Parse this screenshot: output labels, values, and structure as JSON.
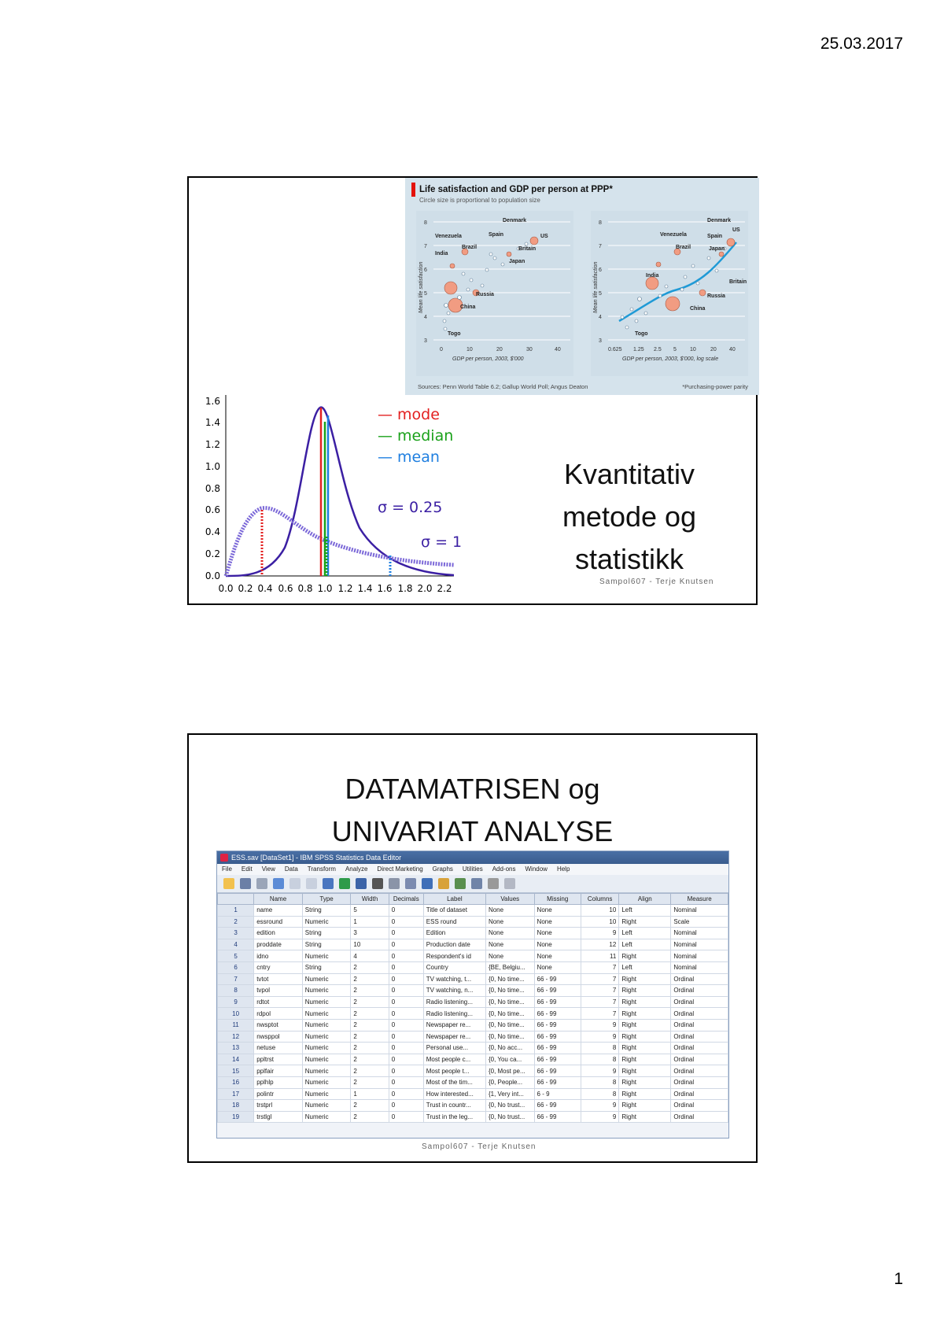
{
  "header": {
    "date": "25.03.2017"
  },
  "footer": {
    "page_number": "1"
  },
  "slide1": {
    "title_lines": [
      "Kvantitativ",
      "metode og",
      "statistikk"
    ],
    "footer": "Sampol607 - Terje Knutsen",
    "economist": {
      "title": "Life satisfaction and GDP per person at PPP*",
      "subtitle": "Circle size is proportional to population size",
      "source": "Sources: Penn World Table 6.2; Gallup World Poll; Angus Deaton",
      "note": "*Purchasing-power parity",
      "colors": {
        "bg": "#d5e3ec",
        "bubble": "#f19c82",
        "line": "#1f9ad6",
        "accent": "#e3120b"
      }
    },
    "distribution": {
      "legend": [
        {
          "label": "— mode",
          "color": "#e32020"
        },
        {
          "label": "— median",
          "color": "#1aa11a"
        },
        {
          "label": "— mean",
          "color": "#1f7fe0"
        }
      ],
      "sigma_labels": [
        "σ = 0.25",
        "σ = 1"
      ]
    }
  },
  "slide2": {
    "title_lines": [
      "DATAMATRISEN og",
      "UNIVARIAT ANALYSE"
    ],
    "footer": "Sampol607 - Terje Knutsen",
    "spss": {
      "window_title": "ESS.sav [DataSet1] - IBM SPSS Statistics Data Editor",
      "menu": [
        "File",
        "Edit",
        "View",
        "Data",
        "Transform",
        "Analyze",
        "Direct Marketing",
        "Graphs",
        "Utilities",
        "Add-ons",
        "Window",
        "Help"
      ],
      "columns": [
        "",
        "Name",
        "Type",
        "Width",
        "Decimals",
        "Label",
        "Values",
        "Missing",
        "Columns",
        "Align",
        "Measure"
      ],
      "rows": [
        [
          "1",
          "name",
          "String",
          "5",
          "0",
          "Title of dataset",
          "None",
          "None",
          "10",
          "Left",
          "Nominal"
        ],
        [
          "2",
          "essround",
          "Numeric",
          "1",
          "0",
          "ESS round",
          "None",
          "None",
          "10",
          "Right",
          "Scale"
        ],
        [
          "3",
          "edition",
          "String",
          "3",
          "0",
          "Edition",
          "None",
          "None",
          "9",
          "Left",
          "Nominal"
        ],
        [
          "4",
          "proddate",
          "String",
          "10",
          "0",
          "Production date",
          "None",
          "None",
          "12",
          "Left",
          "Nominal"
        ],
        [
          "5",
          "idno",
          "Numeric",
          "4",
          "0",
          "Respondent's id",
          "None",
          "None",
          "11",
          "Right",
          "Nominal"
        ],
        [
          "6",
          "cntry",
          "String",
          "2",
          "0",
          "Country",
          "{BE, Belgiu...",
          "None",
          "7",
          "Left",
          "Nominal"
        ],
        [
          "7",
          "tvtot",
          "Numeric",
          "2",
          "0",
          "TV watching, t...",
          "{0, No time...",
          "66 - 99",
          "7",
          "Right",
          "Ordinal"
        ],
        [
          "8",
          "tvpol",
          "Numeric",
          "2",
          "0",
          "TV watching, n...",
          "{0, No time...",
          "66 - 99",
          "7",
          "Right",
          "Ordinal"
        ],
        [
          "9",
          "rdtot",
          "Numeric",
          "2",
          "0",
          "Radio listening...",
          "{0, No time...",
          "66 - 99",
          "7",
          "Right",
          "Ordinal"
        ],
        [
          "10",
          "rdpol",
          "Numeric",
          "2",
          "0",
          "Radio listening...",
          "{0, No time...",
          "66 - 99",
          "7",
          "Right",
          "Ordinal"
        ],
        [
          "11",
          "nwsptot",
          "Numeric",
          "2",
          "0",
          "Newspaper re...",
          "{0, No time...",
          "66 - 99",
          "9",
          "Right",
          "Ordinal"
        ],
        [
          "12",
          "nwsppol",
          "Numeric",
          "2",
          "0",
          "Newspaper re...",
          "{0, No time...",
          "66 - 99",
          "9",
          "Right",
          "Ordinal"
        ],
        [
          "13",
          "netuse",
          "Numeric",
          "2",
          "0",
          "Personal use...",
          "{0, No acc...",
          "66 - 99",
          "8",
          "Right",
          "Ordinal"
        ],
        [
          "14",
          "ppltrst",
          "Numeric",
          "2",
          "0",
          "Most people c...",
          "{0, You ca...",
          "66 - 99",
          "8",
          "Right",
          "Ordinal"
        ],
        [
          "15",
          "pplfair",
          "Numeric",
          "2",
          "0",
          "Most people t...",
          "{0, Most pe...",
          "66 - 99",
          "9",
          "Right",
          "Ordinal"
        ],
        [
          "16",
          "pplhlp",
          "Numeric",
          "2",
          "0",
          "Most of the tim...",
          "{0, People...",
          "66 - 99",
          "8",
          "Right",
          "Ordinal"
        ],
        [
          "17",
          "polintr",
          "Numeric",
          "1",
          "0",
          "How interested...",
          "{1, Very int...",
          "6 - 9",
          "8",
          "Right",
          "Ordinal"
        ],
        [
          "18",
          "trstprl",
          "Numeric",
          "2",
          "0",
          "Trust in countr...",
          "{0, No trust...",
          "66 - 99",
          "9",
          "Right",
          "Ordinal"
        ],
        [
          "19",
          "trstlgl",
          "Numeric",
          "2",
          "0",
          "Trust in the leg...",
          "{0, No trust...",
          "66 - 99",
          "9",
          "Right",
          "Ordinal"
        ]
      ]
    }
  }
}
